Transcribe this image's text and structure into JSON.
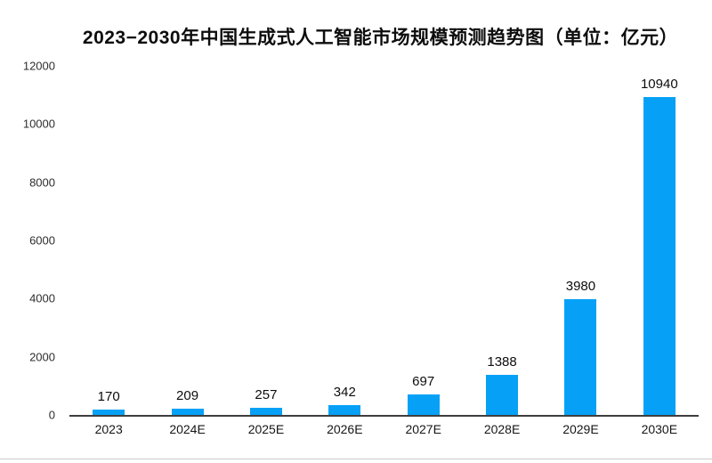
{
  "title": "2023−2030年中国生成式人工智能市场规模预测趋势图（单位：亿元）",
  "colors": {
    "bar": "#06a1f6",
    "axis_line": "#3f3f3f",
    "title_text": "#0d0d0d",
    "tick_text": "#2e2e2e",
    "value_label_text": "#0d0d0d",
    "background": "#ffffff",
    "bottom_edge_line": "#cccccc"
  },
  "chart_data": {
    "type": "bar",
    "title": "2023−2030年中国生成式人工智能市场规模预测趋势图（单位：亿元）",
    "unit": "亿元",
    "categories": [
      "2023",
      "2024E",
      "2025E",
      "2026E",
      "2027E",
      "2028E",
      "2029E",
      "2030E"
    ],
    "values": [
      170,
      209,
      257,
      342,
      697,
      1388,
      3980,
      10940
    ],
    "data_labels": [
      "170",
      "209",
      "257",
      "342",
      "697",
      "1388",
      "3980",
      "10940"
    ],
    "xlabel": "",
    "ylabel": "",
    "ylim": [
      0,
      12000
    ],
    "yticks": [
      0,
      2000,
      4000,
      6000,
      8000,
      10000,
      12000
    ],
    "grid": false,
    "legend": false,
    "bar_color": "#06a1f6"
  }
}
